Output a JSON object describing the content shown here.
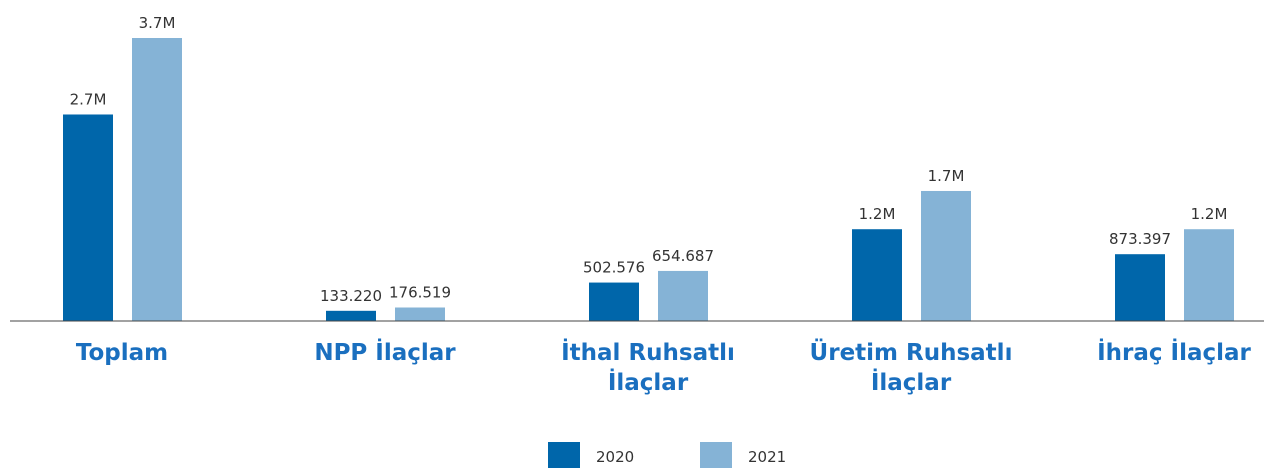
{
  "chart_data": {
    "type": "bar",
    "categories": [
      "Toplam",
      "NPP İlaçlar",
      "İthal Ruhsatlı İlaçlar",
      "Üretim Ruhsatlı İlaçlar",
      "İhraç İlaçlar"
    ],
    "series": [
      {
        "name": "2020",
        "color": "#0066aa",
        "values": [
          2700000,
          133220,
          502576,
          1200000,
          873397
        ],
        "value_labels": [
          "2.7M",
          "133.220",
          "502.576",
          "1.2M",
          "873.397"
        ]
      },
      {
        "name": "2021",
        "color": "#85b3d6",
        "values": [
          3700000,
          176519,
          654687,
          1700000,
          1200000
        ],
        "value_labels": [
          "3.7M",
          "176.519",
          "654.687",
          "1.7M",
          "1.2M"
        ]
      }
    ]
  }
}
